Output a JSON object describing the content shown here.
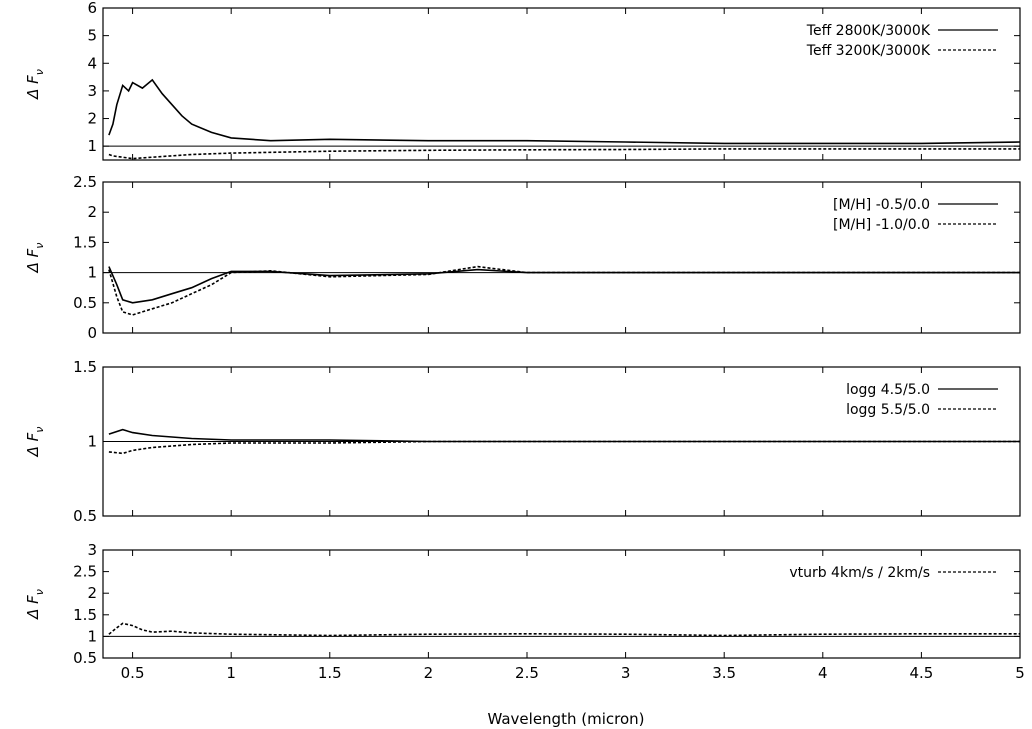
{
  "chart_data": {
    "type": "line",
    "xlabel": "Wavelength (micron)",
    "xlim": [
      0.35,
      5.0
    ],
    "xticks": [
      "0.5",
      "1",
      "1.5",
      "2",
      "2.5",
      "3",
      "3.5",
      "4",
      "4.5",
      "5"
    ],
    "panels": [
      {
        "ylabel": "Δ F",
        "ylabel_sub": "ν",
        "ylim": [
          0.5,
          6
        ],
        "yticks": [
          "1",
          "2",
          "3",
          "4",
          "5",
          "6"
        ],
        "series": [
          {
            "name": "Teff 2800K/3000K",
            "style": "solid",
            "x": [
              0.38,
              0.4,
              0.42,
              0.45,
              0.48,
              0.5,
              0.55,
              0.6,
              0.65,
              0.7,
              0.75,
              0.8,
              0.9,
              1.0,
              1.2,
              1.5,
              2.0,
              2.5,
              3.0,
              3.5,
              4.0,
              4.5,
              5.0
            ],
            "y": [
              1.4,
              1.8,
              2.5,
              3.2,
              3.0,
              3.3,
              3.1,
              3.4,
              2.9,
              2.5,
              2.1,
              1.8,
              1.5,
              1.3,
              1.2,
              1.25,
              1.2,
              1.2,
              1.15,
              1.1,
              1.1,
              1.1,
              1.15
            ]
          },
          {
            "name": "Teff 3200K/3000K",
            "style": "dashed",
            "x": [
              0.38,
              0.4,
              0.5,
              0.6,
              0.8,
              1.0,
              1.5,
              2.0,
              2.5,
              3.0,
              3.5,
              4.0,
              4.5,
              5.0
            ],
            "y": [
              0.7,
              0.65,
              0.55,
              0.6,
              0.7,
              0.75,
              0.82,
              0.85,
              0.87,
              0.88,
              0.9,
              0.9,
              0.9,
              0.9
            ]
          }
        ]
      },
      {
        "ylabel": "Δ F",
        "ylabel_sub": "ν",
        "ylim": [
          0,
          2.5
        ],
        "yticks": [
          "0",
          "0.5",
          "1",
          "1.5",
          "2",
          "2.5"
        ],
        "series": [
          {
            "name": "[M/H] -0.5/0.0",
            "style": "solid",
            "x": [
              0.38,
              0.42,
              0.45,
              0.5,
              0.6,
              0.7,
              0.8,
              0.9,
              1.0,
              1.2,
              1.5,
              2.0,
              2.25,
              2.5,
              3.0,
              4.0,
              5.0
            ],
            "y": [
              1.1,
              0.8,
              0.55,
              0.5,
              0.55,
              0.65,
              0.75,
              0.9,
              1.02,
              1.02,
              0.95,
              0.98,
              1.05,
              1.0,
              1.0,
              1.0,
              1.0
            ]
          },
          {
            "name": "[M/H] -1.0/0.0",
            "style": "dashed",
            "x": [
              0.38,
              0.42,
              0.45,
              0.5,
              0.6,
              0.7,
              0.8,
              0.9,
              1.0,
              1.2,
              1.5,
              2.0,
              2.25,
              2.5,
              3.0,
              4.0,
              5.0
            ],
            "y": [
              1.05,
              0.6,
              0.35,
              0.3,
              0.4,
              0.5,
              0.65,
              0.8,
              1.0,
              1.03,
              0.93,
              0.97,
              1.1,
              1.0,
              1.0,
              1.0,
              1.0
            ]
          }
        ]
      },
      {
        "ylabel": "Δ F",
        "ylabel_sub": "ν",
        "ylim": [
          0.5,
          1.5
        ],
        "yticks": [
          "0.5",
          "1",
          "1.5"
        ],
        "series": [
          {
            "name": "logg 4.5/5.0",
            "style": "solid",
            "x": [
              0.38,
              0.45,
              0.5,
              0.6,
              0.7,
              0.8,
              1.0,
              1.5,
              2.0,
              3.0,
              4.0,
              5.0
            ],
            "y": [
              1.05,
              1.08,
              1.06,
              1.04,
              1.03,
              1.02,
              1.01,
              1.01,
              1.0,
              1.0,
              1.0,
              1.0
            ]
          },
          {
            "name": "logg 5.5/5.0",
            "style": "dashed",
            "x": [
              0.38,
              0.45,
              0.5,
              0.6,
              0.7,
              0.8,
              1.0,
              1.5,
              2.0,
              3.0,
              4.0,
              5.0
            ],
            "y": [
              0.93,
              0.92,
              0.94,
              0.96,
              0.97,
              0.98,
              0.99,
              0.99,
              1.0,
              1.0,
              1.0,
              1.0
            ]
          }
        ]
      },
      {
        "ylabel": "Δ F",
        "ylabel_sub": "ν",
        "ylim": [
          0.5,
          3
        ],
        "yticks": [
          "0.5",
          "1",
          "1.5",
          "2",
          "2.5",
          "3"
        ],
        "series": [
          {
            "name": "vturb 4km/s / 2km/s",
            "style": "dashed",
            "x": [
              0.38,
              0.42,
              0.45,
              0.5,
              0.55,
              0.6,
              0.7,
              0.8,
              1.0,
              1.5,
              2.0,
              2.5,
              3.0,
              3.5,
              4.0,
              4.5,
              5.0
            ],
            "y": [
              1.05,
              1.2,
              1.3,
              1.25,
              1.15,
              1.1,
              1.12,
              1.08,
              1.05,
              1.02,
              1.05,
              1.06,
              1.05,
              1.02,
              1.05,
              1.06,
              1.06
            ]
          }
        ]
      }
    ]
  }
}
